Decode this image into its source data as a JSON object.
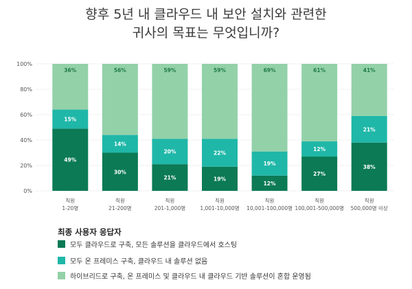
{
  "title": {
    "line1": "향후 5년 내 클라우드 내 보안 설치와 관련한",
    "line2": "귀사의 목표는 무엇입니까?"
  },
  "colors": {
    "cloud": "#0b7a55",
    "onprem": "#1fb7a8",
    "hybrid": "#93d1a9",
    "grid": "#d9d9d9",
    "axis_text": "#555555"
  },
  "chart_data": {
    "type": "bar",
    "stacked": true,
    "categories": [
      {
        "line1": "직원",
        "line2": "1-20명"
      },
      {
        "line1": "직원",
        "line2": "21-200명"
      },
      {
        "line1": "직원",
        "line2": "201-1,000명"
      },
      {
        "line1": "직원",
        "line2": "1,001-10,000명"
      },
      {
        "line1": "직원",
        "line2": "10,001-100,000명"
      },
      {
        "line1": "직원",
        "line2": "100,001-500,000명"
      },
      {
        "line1": "직원",
        "line2": "500,000명 이상"
      }
    ],
    "series": [
      {
        "key": "cloud",
        "values": [
          49,
          30,
          21,
          19,
          12,
          27,
          38
        ],
        "labels": [
          "49%",
          "30%",
          "21%",
          "19%",
          "12%",
          "27%",
          "38%"
        ]
      },
      {
        "key": "onprem",
        "values": [
          15,
          14,
          20,
          22,
          19,
          12,
          21
        ],
        "labels": [
          "15%",
          "14%",
          "20%",
          "22%",
          "19%",
          "12%",
          "21%"
        ]
      },
      {
        "key": "hybrid",
        "values": [
          36,
          56,
          59,
          59,
          69,
          61,
          41
        ],
        "labels": [
          "36%",
          "56%",
          "59%",
          "59%",
          "69%",
          "61%",
          "41%"
        ]
      }
    ],
    "ylim": [
      0,
      100
    ],
    "yticks": [
      0,
      20,
      40,
      60,
      80,
      100
    ],
    "ytick_labels": [
      "0%",
      "20%",
      "40%",
      "60%",
      "80%",
      "100%"
    ],
    "grid": true,
    "legend": {
      "title": "최종 사용자 응답자",
      "position": "bottom-left",
      "items": [
        {
          "key": "cloud",
          "label": "모두 클라우드로 구축, 모든 솔루션을 클라우드에서 호스팅"
        },
        {
          "key": "onprem",
          "label": "모두 온 프레미스 구축, 클라우드 내 솔루션 없음"
        },
        {
          "key": "hybrid",
          "label": "하이브리드로 구축, 온 프레미스 및 클라우드 내 클라우드 기반 솔루션이 혼합 운영됨"
        }
      ]
    }
  }
}
